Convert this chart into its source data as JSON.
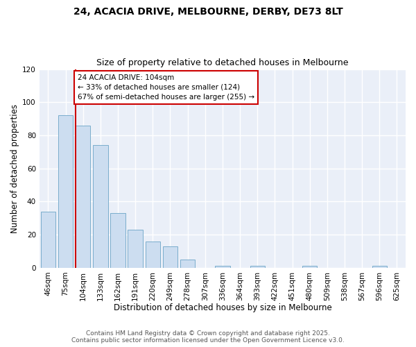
{
  "title_line1": "24, ACACIA DRIVE, MELBOURNE, DERBY, DE73 8LT",
  "title_line2": "Size of property relative to detached houses in Melbourne",
  "xlabel": "Distribution of detached houses by size in Melbourne",
  "ylabel": "Number of detached properties",
  "categories": [
    "46sqm",
    "75sqm",
    "104sqm",
    "133sqm",
    "162sqm",
    "191sqm",
    "220sqm",
    "249sqm",
    "278sqm",
    "307sqm",
    "336sqm",
    "364sqm",
    "393sqm",
    "422sqm",
    "451sqm",
    "480sqm",
    "509sqm",
    "538sqm",
    "567sqm",
    "596sqm",
    "625sqm"
  ],
  "values": [
    34,
    92,
    86,
    74,
    33,
    23,
    16,
    13,
    5,
    0,
    1,
    0,
    1,
    0,
    0,
    1,
    0,
    0,
    0,
    1,
    0
  ],
  "bar_color": "#ccddf0",
  "bar_edge_color": "#7aadcc",
  "vline_x_index": 2,
  "vline_color": "#cc0000",
  "annotation_title": "24 ACACIA DRIVE: 104sqm",
  "annotation_line2": "← 33% of detached houses are smaller (124)",
  "annotation_line3": "67% of semi-detached houses are larger (255) →",
  "annotation_box_color": "#cc0000",
  "annotation_fill": "#ffffff",
  "ylim": [
    0,
    120
  ],
  "yticks": [
    0,
    20,
    40,
    60,
    80,
    100,
    120
  ],
  "footer_line1": "Contains HM Land Registry data © Crown copyright and database right 2025.",
  "footer_line2": "Contains public sector information licensed under the Open Government Licence v3.0.",
  "bg_color": "#ffffff",
  "plot_bg_color": "#eaeff8",
  "grid_color": "#ffffff",
  "title_fontsize": 10,
  "subtitle_fontsize": 9,
  "label_fontsize": 8.5,
  "tick_fontsize": 7.5,
  "annotation_fontsize": 7.5,
  "footer_fontsize": 6.5
}
